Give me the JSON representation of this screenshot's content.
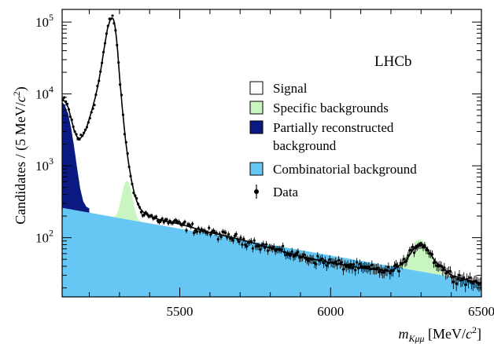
{
  "chart_data": {
    "type": "line",
    "experiment_label": "LHCb",
    "ylabel": {
      "text": "Candidates / (5 MeV/",
      "c": "c",
      "exp": "2",
      "close": ")"
    },
    "xlabel": {
      "m": "m",
      "sub": "Kμμ",
      "unit": " [MeV/",
      "c": "c",
      "exp": "2",
      "close": "]"
    },
    "x_axis": {
      "range": [
        5110,
        6500
      ],
      "ticks": [
        5500,
        6000,
        6500
      ],
      "tick_labels": [
        "5500",
        "6000",
        "6500"
      ]
    },
    "y_axis": {
      "scale": "log",
      "range": [
        15,
        150000
      ],
      "ticks": [
        100,
        1000,
        10000,
        100000
      ],
      "tick_labels": [
        {
          "base": "10",
          "exp": "2"
        },
        {
          "base": "10",
          "exp": "3"
        },
        {
          "base": "10",
          "exp": "4"
        },
        {
          "base": "10",
          "exp": "5"
        }
      ]
    },
    "legend": {
      "position": "top-right",
      "entries": [
        {
          "label_lines": [
            "Signal"
          ],
          "swatch": "#ffffff",
          "kind": "box"
        },
        {
          "label_lines": [
            "Specific backgrounds"
          ],
          "swatch": "#c8f5c0",
          "kind": "box"
        },
        {
          "label_lines": [
            "Partially reconstructed",
            "background"
          ],
          "swatch": "#0a1a80",
          "kind": "box"
        },
        {
          "label_lines": [
            "Combinatorial background"
          ],
          "swatch": "#66c7f5",
          "kind": "box"
        },
        {
          "label_lines": [
            "Data"
          ],
          "swatch": "#000000",
          "kind": "marker"
        }
      ]
    },
    "colors": {
      "combinatorial": "#66c7f5",
      "partially_reconstructed": "#0a1a80",
      "specific": "#c8f5c0",
      "total_fit": "#000000",
      "data": "#000000"
    },
    "components": {
      "combinatorial": {
        "x": [
          5110,
          6500
        ],
        "y": [
          260,
          24
        ]
      },
      "partially_reconstructed": {
        "x": [
          5110,
          5120,
          5130,
          5140,
          5150,
          5160,
          5170,
          5180,
          5190,
          5200
        ],
        "y": [
          7800,
          6800,
          5300,
          3300,
          1800,
          900,
          480,
          320,
          270,
          255
        ]
      },
      "specific_peak_1": {
        "mean": 5325,
        "sigma": 14,
        "peak": 440
      },
      "specific_peak_2": {
        "mean": 6295,
        "sigma": 30,
        "peak": 60
      }
    },
    "total_fit": {
      "x": [
        5110,
        5120,
        5130,
        5140,
        5150,
        5160,
        5170,
        5180,
        5190,
        5200,
        5210,
        5220,
        5230,
        5240,
        5250,
        5260,
        5270,
        5275,
        5280,
        5285,
        5290,
        5295,
        5300,
        5310,
        5320,
        5330,
        5340,
        5350,
        5360,
        5370,
        5380,
        5400,
        5420,
        5450,
        5500,
        5550,
        5600,
        5700,
        5800,
        5900,
        6000,
        6100,
        6200,
        6250,
        6280,
        6300,
        6320,
        6350,
        6400,
        6450,
        6500
      ],
      "y": [
        8400,
        7800,
        6500,
        4500,
        3100,
        2500,
        2400,
        2700,
        3300,
        4500,
        6200,
        9000,
        14000,
        24000,
        45000,
        80000,
        110000,
        115000,
        110000,
        90000,
        60000,
        35000,
        18000,
        6000,
        2300,
        1100,
        620,
        400,
        300,
        250,
        225,
        200,
        185,
        170,
        155,
        135,
        118,
        95,
        72,
        55,
        45,
        38,
        34,
        48,
        75,
        85,
        70,
        45,
        30,
        26,
        23
      ]
    },
    "data_points": {
      "x_start": 5112,
      "x_step": 5,
      "relative_scatter": 0.07,
      "error_bars": "sqrt(N)"
    }
  }
}
